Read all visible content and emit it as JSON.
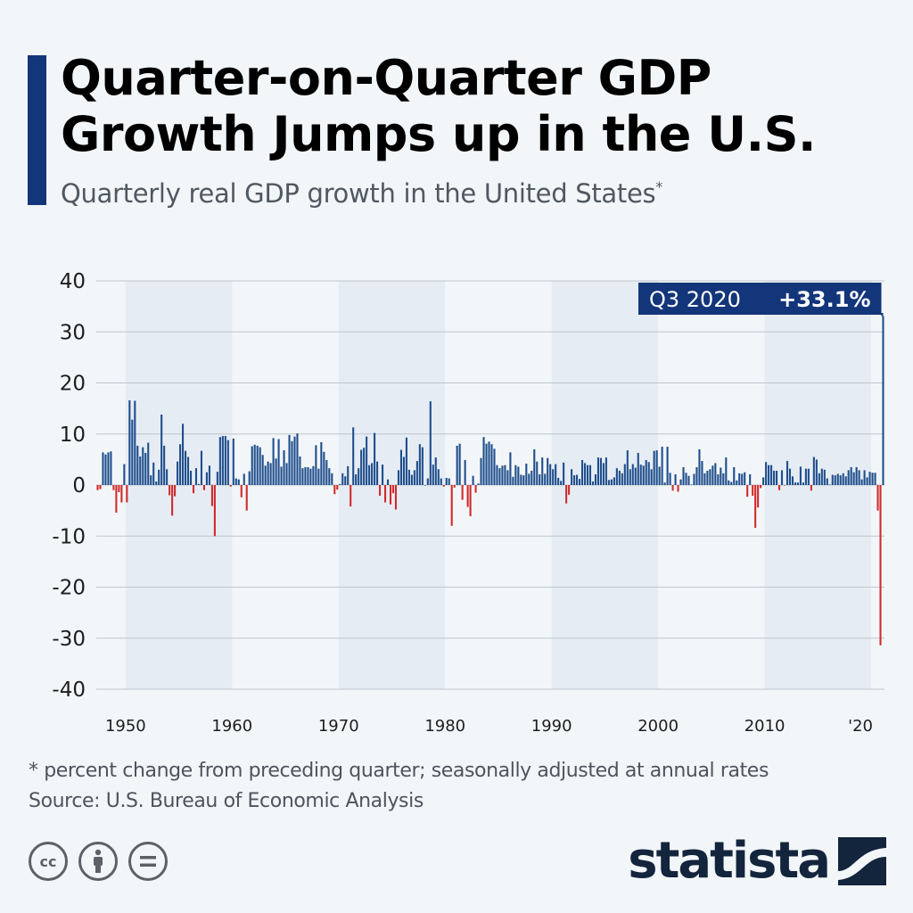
{
  "header": {
    "title_line1": "Quarter-on-Quarter GDP",
    "title_line2": "Growth Jumps up in the U.S.",
    "subtitle": "Quarterly real GDP growth in the United States",
    "subtitle_mark": "*"
  },
  "footer": {
    "note": "* percent change from preceding quarter; seasonally adjusted at annual rates",
    "source": "Source: U.S. Bureau of Economic Analysis",
    "logo": "statista",
    "license_icons": [
      "cc-icon",
      "attribution-icon",
      "no-derivatives-icon"
    ],
    "cc_label": "cc"
  },
  "colors": {
    "positive": "#1f4e8c",
    "negative": "#d12b2b",
    "band": "#e6ecf4",
    "accent": "#13357a",
    "callout_bg": "#13357a"
  },
  "chart_data": {
    "type": "bar",
    "title": "Quarterly real GDP growth in the United States",
    "xlabel": "",
    "ylabel": "",
    "ylim": [
      -40,
      40
    ],
    "yticks": [
      "40",
      "30",
      "20",
      "10",
      "0",
      "-10",
      "-20",
      "-30",
      "-40"
    ],
    "xticks": [
      "1950",
      "1960",
      "1970",
      "1980",
      "1990",
      "2000",
      "2010",
      "'20"
    ],
    "start_year": 1947.25,
    "annotation": {
      "label": "Q3 2020",
      "value": "+33.1%"
    },
    "values": [
      -1.0,
      -0.8,
      6.4,
      6.0,
      6.4,
      6.6,
      -1.0,
      -5.4,
      -1.4,
      -3.4,
      4.1,
      -3.4,
      16.6,
      12.8,
      16.5,
      7.7,
      5.6,
      7.4,
      6.3,
      8.3,
      1.9,
      4.4,
      0.7,
      3.0,
      13.8,
      7.7,
      3.1,
      -2.0,
      -6.0,
      -2.2,
      4.6,
      8.0,
      12.0,
      6.7,
      5.5,
      2.8,
      -1.6,
      3.3,
      0.2,
      6.7,
      -1.0,
      2.5,
      3.8,
      -4.1,
      -10.0,
      2.6,
      9.4,
      9.6,
      9.6,
      8.8,
      -0.3,
      9.1,
      1.3,
      1.1,
      -2.4,
      2.2,
      -5.0,
      2.7,
      7.6,
      7.9,
      7.7,
      7.4,
      5.9,
      3.8,
      4.6,
      4.3,
      9.2,
      5.2,
      9.0,
      3.6,
      6.8,
      4.3,
      9.8,
      8.6,
      9.5,
      10.1,
      5.6,
      3.3,
      3.5,
      3.5,
      3.2,
      3.7,
      7.8,
      3.2,
      8.4,
      6.5,
      4.9,
      3.3,
      2.3,
      -1.8,
      -0.9,
      0.2,
      2.3,
      1.7,
      3.7,
      -4.2,
      11.3,
      2.1,
      3.3,
      6.9,
      7.3,
      9.5,
      3.9,
      4.3,
      10.2,
      4.6,
      -2.1,
      4.0,
      -3.4,
      1.1,
      -3.8,
      -1.6,
      -4.8,
      2.9,
      6.9,
      5.5,
      9.3,
      3.0,
      2.0,
      2.9,
      4.7,
      8.0,
      7.4,
      0.0,
      1.3,
      16.4,
      4.0,
      5.4,
      3.1,
      1.3,
      -0.3,
      1.4,
      1.3,
      -8.0,
      -0.5,
      7.7,
      8.1,
      -2.9,
      4.9,
      -4.3,
      -6.1,
      1.8,
      -1.5,
      0.3,
      5.3,
      9.4,
      8.1,
      8.5,
      8.0,
      7.1,
      3.9,
      3.3,
      3.8,
      3.9,
      2.9,
      6.4,
      1.6,
      3.9,
      3.6,
      2.0,
      1.9,
      4.2,
      2.2,
      2.8,
      7.0,
      4.6,
      2.1,
      5.4,
      2.2,
      5.3,
      4.1,
      3.1,
      4.1,
      1.4,
      0.8,
      4.4,
      -3.6,
      -1.9,
      3.1,
      1.9,
      2.0,
      1.2,
      4.9,
      4.3,
      3.9,
      3.9,
      0.7,
      2.1,
      5.4,
      5.3,
      4.3,
      5.4,
      1.0,
      1.1,
      1.5,
      3.3,
      2.8,
      2.3,
      4.1,
      6.8,
      3.1,
      4.1,
      3.4,
      6.3,
      4.0,
      3.8,
      4.9,
      4.5,
      3.1,
      6.7,
      6.8,
      3.6,
      7.5,
      0.5,
      7.5,
      2.4,
      -1.1,
      2.1,
      -1.3,
      1.1,
      3.5,
      2.4,
      1.8,
      0.1,
      2.2,
      3.5,
      7.0,
      4.7,
      2.3,
      2.8,
      3.1,
      3.8,
      4.3,
      2.1,
      3.4,
      2.3,
      5.4,
      0.9,
      0.6,
      3.5,
      0.9,
      2.3,
      2.2,
      2.5,
      -2.3,
      2.1,
      -2.1,
      -8.4,
      -4.4,
      -0.6,
      1.5,
      4.5,
      3.9,
      3.9,
      2.8,
      2.8,
      -1.0,
      2.9,
      -0.1,
      4.7,
      3.2,
      1.7,
      0.5,
      0.5,
      3.6,
      0.5,
      3.2,
      3.2,
      -1.1,
      5.5,
      5.0,
      2.3,
      3.2,
      3.0,
      1.3,
      0.1,
      2.0,
      1.9,
      2.2,
      1.9,
      2.3,
      1.7,
      2.9,
      3.5,
      2.5,
      3.5,
      2.9,
      1.1,
      2.9,
      1.5,
      2.6,
      2.4,
      2.4,
      -5.0,
      -31.4,
      33.1
    ]
  }
}
